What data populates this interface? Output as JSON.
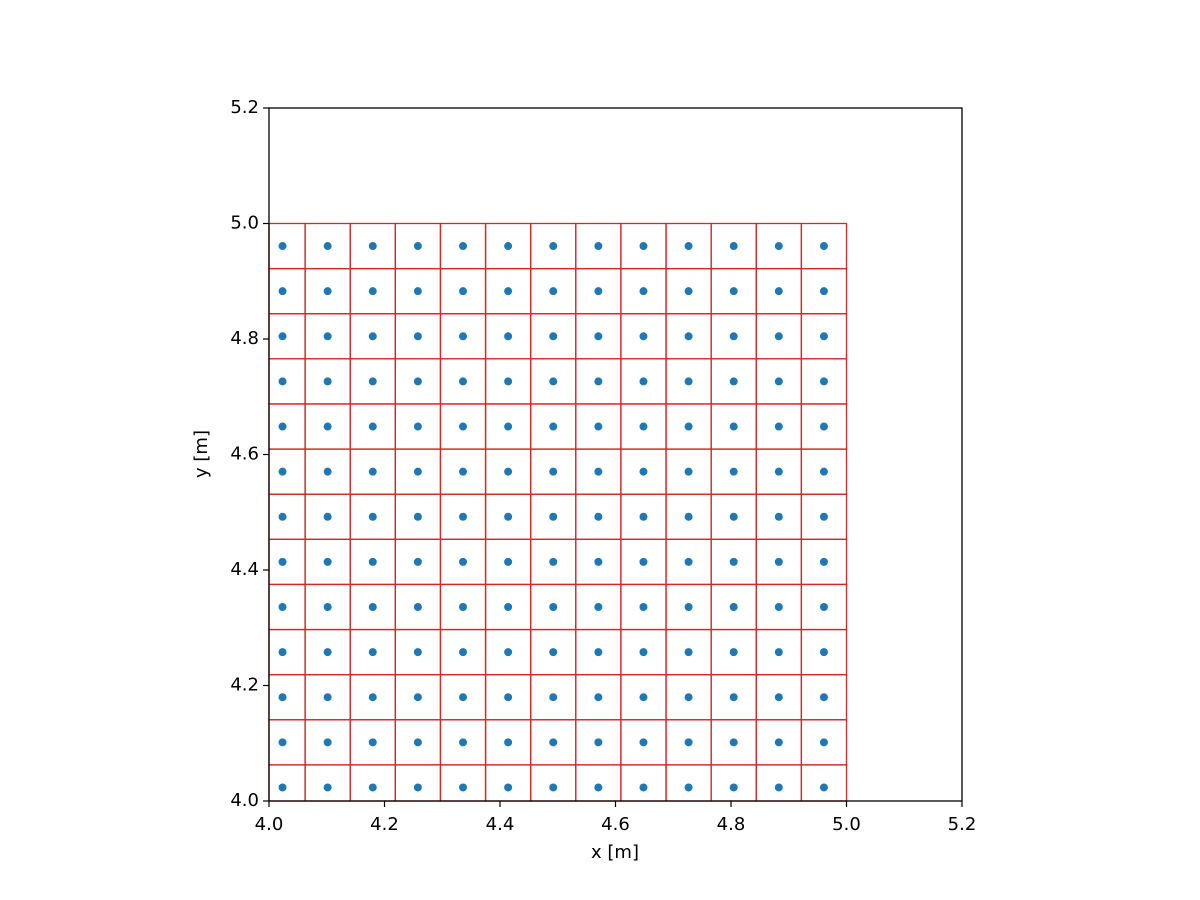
{
  "chart_data": {
    "type": "scatter",
    "x_label": "x [m]",
    "y_label": "y [m]",
    "xlim": [
      4.0,
      5.2
    ],
    "ylim": [
      4.0,
      5.2
    ],
    "xticks": [
      {
        "value": 4.0,
        "label": "4.0"
      },
      4.2,
      4.4,
      4.6,
      4.8,
      {
        "value": 5.0,
        "label": "5.0"
      },
      5.2
    ],
    "yticks": [
      {
        "value": 4.0,
        "label": "4.0"
      },
      4.2,
      4.4,
      4.6,
      4.8,
      {
        "value": 5.0,
        "label": "5.0"
      },
      5.2
    ],
    "point_color": "#1f77b4",
    "cell_color": "#d62728",
    "point_x": [
      4.0234375,
      4.1015625,
      4.1796875,
      4.2578125,
      4.3359375,
      4.4140625,
      4.4921875,
      4.5703125,
      4.6484375,
      4.7265625,
      4.8046875,
      4.8828125,
      4.9609375
    ],
    "point_y": [
      4.0234375,
      4.1015625,
      4.1796875,
      4.2578125,
      4.3359375,
      4.4140625,
      4.4921875,
      4.5703125,
      4.6484375,
      4.7265625,
      4.8046875,
      4.8828125,
      4.9609375
    ],
    "cell_x_edges": [
      4.0,
      4.0625,
      4.140625,
      4.21875,
      4.296875,
      4.375,
      4.453125,
      4.53125,
      4.609375,
      4.6875,
      4.765625,
      4.84375,
      4.921875,
      5.0
    ],
    "cell_y_edges": [
      4.0,
      4.0625,
      4.140625,
      4.21875,
      4.296875,
      4.375,
      4.453125,
      4.53125,
      4.609375,
      4.6875,
      4.765625,
      4.84375,
      4.921875,
      5.0
    ]
  }
}
